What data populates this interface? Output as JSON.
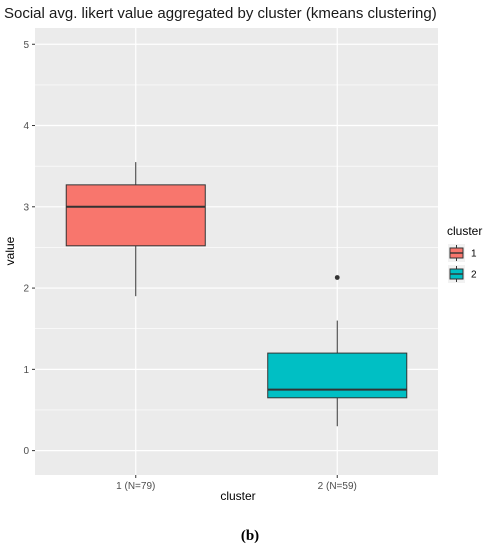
{
  "chart_data": {
    "type": "boxplot",
    "title": "Social avg. likert value aggregated by cluster (kmeans clustering)",
    "xlabel": "cluster",
    "ylabel": "value",
    "ylim": [
      -0.3,
      5.2
    ],
    "yticks": [
      0,
      1,
      2,
      3,
      4,
      5
    ],
    "categories": [
      "1 (N=79)",
      "2 (N=59)"
    ],
    "series": [
      {
        "legend_key": "1",
        "category": "1 (N=79)",
        "color": "#F8766D",
        "min": 1.9,
        "q1": 2.52,
        "median": 3.0,
        "q3": 3.27,
        "max": 3.55,
        "outliers": []
      },
      {
        "legend_key": "2",
        "category": "2 (N=59)",
        "color": "#00BFC4",
        "min": 0.3,
        "q1": 0.65,
        "median": 0.75,
        "q3": 1.2,
        "max": 1.6,
        "outliers": [
          2.13
        ]
      }
    ],
    "legend": {
      "title": "cluster",
      "placement": "right",
      "entries": [
        "1",
        "2"
      ]
    },
    "grid": true,
    "panel_background": "#EBEBEB",
    "grid_color": "#FFFFFF"
  },
  "caption": "(b)"
}
